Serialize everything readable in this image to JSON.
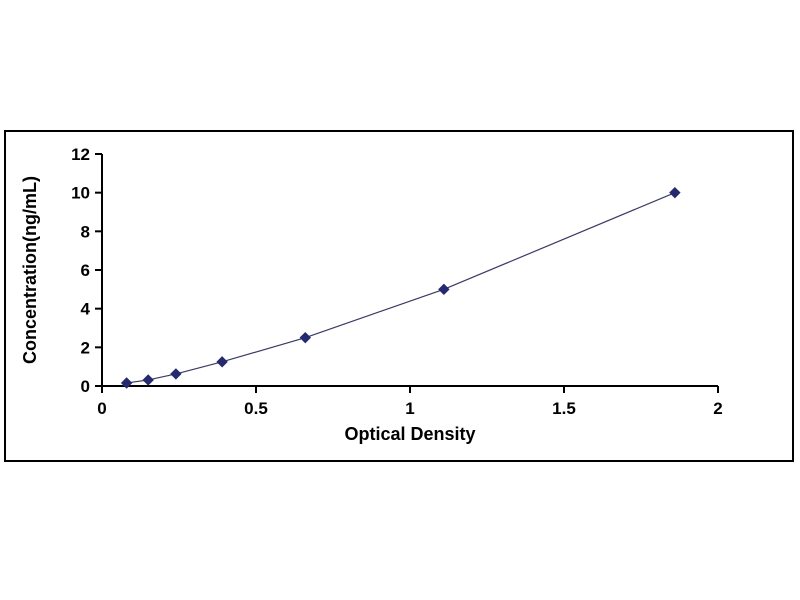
{
  "chart_data": {
    "type": "scatter",
    "title": "",
    "xlabel": "Optical Density",
    "ylabel": "Concentration(ng/mL)",
    "x": [
      0.08,
      0.15,
      0.24,
      0.39,
      0.66,
      1.11,
      1.86
    ],
    "y": [
      0.156,
      0.312,
      0.625,
      1.25,
      2.5,
      5.0,
      10.0
    ],
    "xlim": [
      0,
      2
    ],
    "ylim": [
      0,
      12
    ],
    "xticks": [
      0,
      0.5,
      1,
      1.5,
      2
    ],
    "xtick_labels": [
      "0",
      "0.5",
      "1",
      "1.5",
      "2"
    ],
    "yticks": [
      0,
      2,
      4,
      6,
      8,
      10,
      12
    ],
    "ytick_labels": [
      "0",
      "2",
      "4",
      "6",
      "8",
      "10",
      "12"
    ],
    "marker": "diamond",
    "marker_color": "#252a6e",
    "line_color": "#3a3a66",
    "axis_color": "#000000",
    "grid": false,
    "legend": "none"
  }
}
